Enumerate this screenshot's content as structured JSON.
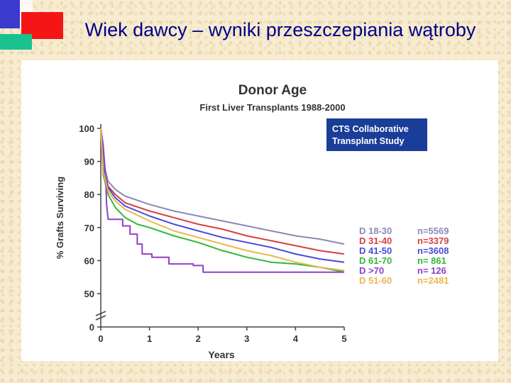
{
  "slide": {
    "title": "Wiek dawcy – wyniki przeszczepiania wątroby"
  },
  "colors": {
    "title": "#00008b",
    "badge_bg": "#1a3d99",
    "accent_blue": "#3b3bd0",
    "accent_red": "#f41616",
    "accent_green": "#19c28e"
  },
  "chart_data": {
    "type": "line",
    "title": "Donor Age",
    "subtitle": "First Liver Transplants 1988-2000",
    "xlabel": "Years",
    "ylabel": "% Grafts Surviving",
    "xlim": [
      0,
      5
    ],
    "ylim": [
      0,
      100
    ],
    "x_ticks": [
      "0",
      "1",
      "2",
      "3",
      "4",
      "5"
    ],
    "y_ticks": [
      "100",
      "90",
      "80",
      "70",
      "60",
      "50",
      "0"
    ],
    "badge": [
      "CTS Collaborative",
      "Transplant Study"
    ],
    "series": [
      {
        "name": "D 18-30",
        "n": "n=5569",
        "color": "#8a8ab8",
        "x": [
          0,
          0.05,
          0.15,
          0.3,
          0.5,
          1,
          1.5,
          2,
          2.5,
          3,
          3.5,
          4,
          4.5,
          5
        ],
        "y": [
          100,
          90,
          84,
          81.5,
          79.5,
          77,
          75,
          73.5,
          72,
          70.5,
          69,
          67.5,
          66.5,
          65
        ]
      },
      {
        "name": "D 31-40",
        "n": "n=3379",
        "color": "#d84040",
        "x": [
          0,
          0.05,
          0.15,
          0.3,
          0.5,
          1,
          1.5,
          2,
          2.5,
          3,
          3.5,
          4,
          4.5,
          5
        ],
        "y": [
          100,
          88.5,
          82.5,
          80,
          77.5,
          75,
          73,
          71,
          69.5,
          67.5,
          66,
          64.5,
          63,
          62
        ]
      },
      {
        "name": "D 41-50",
        "n": "n=3608",
        "color": "#4a4ad8",
        "x": [
          0,
          0.05,
          0.15,
          0.3,
          0.5,
          1,
          1.5,
          2,
          2.5,
          3,
          3.5,
          4,
          4.5,
          5
        ],
        "y": [
          100,
          88,
          82,
          79,
          76.5,
          73.5,
          71,
          69,
          67,
          65.5,
          64,
          62,
          60.5,
          59.5
        ]
      },
      {
        "name": "D 61-70",
        "n": "n=  861",
        "color": "#33b833",
        "x": [
          0,
          0.05,
          0.15,
          0.3,
          0.5,
          0.75,
          1,
          1.5,
          2,
          2.5,
          3,
          3.5,
          4,
          4.5,
          5
        ],
        "y": [
          100,
          86,
          80,
          76,
          73,
          71,
          70,
          67.5,
          65.5,
          63,
          61,
          59.5,
          59,
          58,
          56.5
        ]
      },
      {
        "name": "D >70",
        "n": "n=  126",
        "color": "#9040c8",
        "x": [
          0,
          0.05,
          0.1,
          0.12,
          0.15,
          0.3,
          0.45,
          0.45,
          0.6,
          0.6,
          0.75,
          0.75,
          0.85,
          0.85,
          1.05,
          1.05,
          1.4,
          1.4,
          1.9,
          1.9,
          2.1,
          2.1,
          5
        ],
        "y": [
          100,
          95,
          85,
          77,
          72.5,
          72.5,
          72.5,
          70.5,
          70.5,
          68,
          68,
          65,
          65,
          62,
          62,
          61,
          61,
          59,
          59,
          58.5,
          58.5,
          56.5,
          56.5
        ]
      },
      {
        "name": "D 51-60",
        "n": "n=2481",
        "color": "#e8b850",
        "x": [
          0,
          0.05,
          0.15,
          0.3,
          0.5,
          1,
          1.5,
          2,
          2.5,
          3,
          3.5,
          4,
          4.5,
          5
        ],
        "y": [
          100,
          87,
          81,
          78,
          75.5,
          72,
          69,
          67,
          65,
          63,
          61.5,
          59.5,
          58,
          57
        ]
      }
    ]
  }
}
